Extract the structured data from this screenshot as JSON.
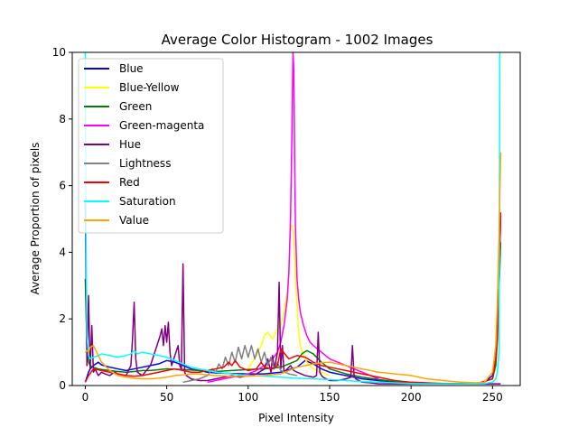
{
  "chart_data": {
    "type": "line",
    "title": "Average Color Histogram - 1002 Images",
    "xlabel": "Pixel Intensity",
    "ylabel": "Average Proportion of pixels",
    "xlim": [
      -8,
      267
    ],
    "ylim": [
      0,
      10
    ],
    "xticks": [
      0,
      50,
      100,
      150,
      200,
      250
    ],
    "yticks": [
      0,
      2,
      4,
      6,
      8,
      10
    ],
    "grid": false,
    "legend_position": "top-left",
    "series": [
      {
        "name": "Blue",
        "color": "#0000ff",
        "x": [
          0,
          1,
          2,
          3,
          5,
          8,
          10,
          15,
          20,
          25,
          30,
          35,
          40,
          45,
          50,
          55,
          60,
          65,
          70,
          75,
          80,
          90,
          100,
          110,
          120,
          130,
          135,
          140,
          145,
          150,
          160,
          170,
          180,
          190,
          200,
          210,
          220,
          230,
          240,
          245,
          250,
          252,
          253,
          254,
          255
        ],
        "y": [
          0.1,
          0.25,
          0.4,
          0.5,
          0.6,
          0.7,
          0.62,
          0.55,
          0.5,
          0.45,
          0.5,
          0.55,
          0.6,
          0.65,
          0.75,
          0.7,
          0.6,
          0.5,
          0.45,
          0.4,
          0.38,
          0.36,
          0.35,
          0.35,
          0.4,
          0.55,
          0.75,
          0.65,
          0.5,
          0.4,
          0.3,
          0.2,
          0.15,
          0.1,
          0.08,
          0.06,
          0.05,
          0.05,
          0.06,
          0.1,
          0.3,
          0.8,
          1.6,
          3.0,
          5.1
        ]
      },
      {
        "name": "Blue-Yellow",
        "color": "#ffff00",
        "x": [
          100,
          105,
          108,
          110,
          112,
          115,
          118,
          120,
          122,
          124,
          125,
          126,
          127,
          128,
          129,
          130,
          131,
          132,
          134,
          136,
          140,
          145,
          150
        ],
        "y": [
          0.5,
          0.9,
          1.2,
          1.5,
          1.6,
          1.4,
          1.7,
          1.8,
          2.2,
          2.8,
          3.5,
          4.8,
          4.8,
          4.5,
          3.2,
          2.4,
          1.6,
          1.2,
          0.9,
          0.7,
          0.5,
          0.4,
          0.3
        ]
      },
      {
        "name": "Green",
        "color": "#008000",
        "x": [
          0,
          1,
          2,
          3,
          5,
          8,
          10,
          15,
          20,
          25,
          30,
          35,
          40,
          50,
          60,
          70,
          80,
          90,
          100,
          110,
          120,
          125,
          130,
          133,
          136,
          140,
          145,
          150,
          160,
          170,
          180,
          190,
          200,
          220,
          240,
          250,
          252,
          253,
          254,
          255
        ],
        "y": [
          3.2,
          1.2,
          0.7,
          0.6,
          0.55,
          0.5,
          0.48,
          0.45,
          0.42,
          0.4,
          0.42,
          0.45,
          0.45,
          0.5,
          0.48,
          0.45,
          0.42,
          0.45,
          0.48,
          0.5,
          0.55,
          0.65,
          0.75,
          0.95,
          1.05,
          0.95,
          0.7,
          0.5,
          0.35,
          0.25,
          0.18,
          0.12,
          0.08,
          0.05,
          0.05,
          0.2,
          0.6,
          1.4,
          2.8,
          4.3
        ]
      },
      {
        "name": "Green-magenta",
        "color": "#ff00ff",
        "x": [
          75,
          80,
          85,
          90,
          95,
          100,
          105,
          110,
          115,
          118,
          120,
          122,
          124,
          125,
          126,
          127,
          127.5,
          128,
          128.5,
          129,
          130,
          131,
          132,
          134,
          136,
          138,
          140,
          145,
          150,
          155,
          160,
          165,
          170,
          175,
          180
        ],
        "y": [
          0.1,
          0.15,
          0.2,
          0.25,
          0.3,
          0.35,
          0.45,
          0.6,
          0.8,
          1.0,
          1.3,
          1.8,
          2.6,
          3.4,
          5.0,
          8.0,
          10.0,
          9.5,
          7.0,
          4.8,
          3.2,
          2.6,
          2.2,
          1.8,
          1.5,
          1.3,
          1.2,
          1.0,
          0.8,
          0.7,
          0.6,
          0.5,
          0.4,
          0.3,
          0.2
        ]
      },
      {
        "name": "Hue",
        "color": "#800080",
        "x": [
          0,
          1,
          2,
          3,
          4,
          5,
          6,
          8,
          10,
          12,
          15,
          18,
          20,
          25,
          28,
          29,
          30,
          31,
          32,
          35,
          40,
          42,
          44,
          46,
          47,
          48,
          49,
          50,
          51,
          52,
          53,
          55,
          57,
          58,
          59,
          60,
          61,
          62,
          65,
          70,
          75,
          80,
          85,
          90,
          95,
          100,
          105,
          110,
          112,
          114,
          115,
          116,
          118,
          119,
          120,
          121,
          122,
          124,
          126,
          128,
          130,
          135,
          140,
          142,
          143,
          144,
          145,
          146,
          148,
          150,
          155,
          160,
          163,
          164,
          165,
          166,
          168,
          170,
          175,
          180,
          185,
          190,
          200,
          220,
          240,
          250,
          255
        ],
        "y": [
          5.5,
          0.6,
          2.7,
          0.5,
          1.8,
          0.4,
          0.5,
          0.3,
          0.4,
          0.35,
          0.3,
          0.4,
          0.35,
          0.3,
          0.6,
          1.4,
          2.5,
          0.8,
          0.4,
          0.3,
          0.6,
          0.9,
          1.2,
          1.5,
          1.7,
          1.2,
          1.8,
          1.3,
          1.9,
          1.0,
          0.6,
          0.9,
          1.2,
          0.6,
          0.5,
          3.65,
          0.4,
          0.3,
          0.2,
          0.15,
          0.15,
          0.2,
          0.25,
          0.3,
          0.25,
          0.3,
          0.35,
          0.5,
          0.8,
          0.4,
          0.9,
          0.5,
          1.0,
          3.1,
          0.5,
          1.2,
          0.4,
          0.5,
          0.6,
          0.45,
          0.4,
          0.3,
          0.25,
          0.3,
          1.6,
          0.4,
          0.3,
          0.25,
          0.2,
          0.15,
          0.15,
          0.2,
          0.25,
          1.2,
          0.3,
          0.2,
          0.15,
          0.1,
          0.08,
          0.05,
          0.05,
          0.05,
          0.05,
          0.05,
          0.05,
          0.05,
          0.05
        ]
      },
      {
        "name": "Lightness",
        "color": "#808080",
        "x": [
          60,
          65,
          70,
          75,
          78,
          80,
          82,
          84,
          86,
          88,
          90,
          92,
          94,
          96,
          98,
          100,
          102,
          104,
          106,
          108,
          110,
          112,
          114,
          116,
          118,
          120,
          125,
          130
        ],
        "y": [
          0.1,
          0.15,
          0.2,
          0.3,
          0.5,
          0.4,
          0.65,
          0.5,
          0.85,
          0.6,
          1.0,
          0.7,
          1.15,
          0.8,
          1.2,
          0.85,
          1.2,
          0.8,
          1.1,
          0.7,
          1.0,
          0.6,
          0.85,
          0.5,
          0.7,
          0.45,
          0.35,
          0.3
        ]
      },
      {
        "name": "Red",
        "color": "#ff0000",
        "x": [
          0,
          2,
          5,
          10,
          15,
          20,
          25,
          30,
          35,
          40,
          45,
          50,
          55,
          60,
          65,
          70,
          75,
          80,
          85,
          88,
          90,
          92,
          95,
          100,
          105,
          108,
          110,
          115,
          118,
          120,
          125,
          130,
          135,
          140,
          145,
          150,
          155,
          160,
          165,
          170,
          175,
          180,
          190,
          200,
          220,
          240,
          250,
          252,
          253,
          254,
          255
        ],
        "y": [
          0.1,
          0.3,
          0.5,
          0.45,
          0.4,
          0.35,
          0.3,
          0.28,
          0.3,
          0.35,
          0.4,
          0.45,
          0.5,
          0.45,
          0.4,
          0.4,
          0.45,
          0.5,
          0.55,
          0.7,
          0.6,
          0.75,
          0.55,
          0.45,
          0.5,
          0.7,
          0.55,
          0.5,
          0.6,
          1.1,
          0.8,
          0.9,
          0.85,
          0.7,
          0.6,
          0.55,
          0.5,
          0.45,
          0.4,
          0.35,
          0.3,
          0.25,
          0.15,
          0.1,
          0.06,
          0.05,
          0.2,
          0.8,
          1.5,
          3.0,
          5.2
        ]
      },
      {
        "name": "Saturation",
        "color": "#00ffff",
        "x": [
          0,
          0.5,
          1,
          2,
          3,
          5,
          8,
          10,
          15,
          20,
          25,
          28,
          30,
          32,
          35,
          40,
          45,
          50,
          55,
          60,
          65,
          70,
          75,
          80,
          90,
          100,
          110,
          120,
          130,
          140,
          150,
          160,
          170,
          180,
          190,
          200,
          210,
          220,
          230,
          240,
          245,
          250,
          252,
          253,
          254,
          254.5,
          255
        ],
        "y": [
          10,
          4.5,
          1.5,
          0.9,
          0.8,
          0.85,
          0.9,
          0.95,
          0.9,
          0.85,
          0.9,
          0.95,
          1.05,
          0.95,
          1.0,
          0.95,
          0.9,
          0.85,
          0.75,
          0.65,
          0.55,
          0.5,
          0.45,
          0.4,
          0.35,
          0.3,
          0.28,
          0.25,
          0.22,
          0.2,
          0.18,
          0.15,
          0.12,
          0.1,
          0.08,
          0.06,
          0.05,
          0.05,
          0.05,
          0.05,
          0.06,
          0.1,
          0.2,
          0.4,
          1.0,
          10,
          10
        ]
      },
      {
        "name": "Value",
        "color": "#ffa500",
        "x": [
          0,
          1,
          2,
          3,
          5,
          8,
          10,
          15,
          20,
          25,
          30,
          35,
          40,
          45,
          50,
          55,
          60,
          65,
          70,
          75,
          80,
          90,
          100,
          110,
          120,
          125,
          130,
          135,
          140,
          145,
          150,
          155,
          160,
          165,
          170,
          180,
          190,
          200,
          210,
          220,
          230,
          240,
          245,
          250,
          252,
          253,
          254,
          255
        ],
        "y": [
          1.0,
          1.05,
          1.0,
          1.15,
          1.2,
          0.9,
          0.7,
          0.45,
          0.3,
          0.25,
          0.22,
          0.2,
          0.2,
          0.22,
          0.25,
          0.3,
          0.32,
          0.35,
          0.35,
          0.32,
          0.3,
          0.28,
          0.28,
          0.3,
          0.35,
          0.45,
          0.55,
          0.6,
          0.65,
          0.68,
          0.7,
          0.65,
          0.6,
          0.55,
          0.5,
          0.4,
          0.35,
          0.3,
          0.2,
          0.15,
          0.1,
          0.08,
          0.1,
          0.4,
          1.2,
          2.5,
          4.5,
          7.0
        ]
      }
    ]
  }
}
